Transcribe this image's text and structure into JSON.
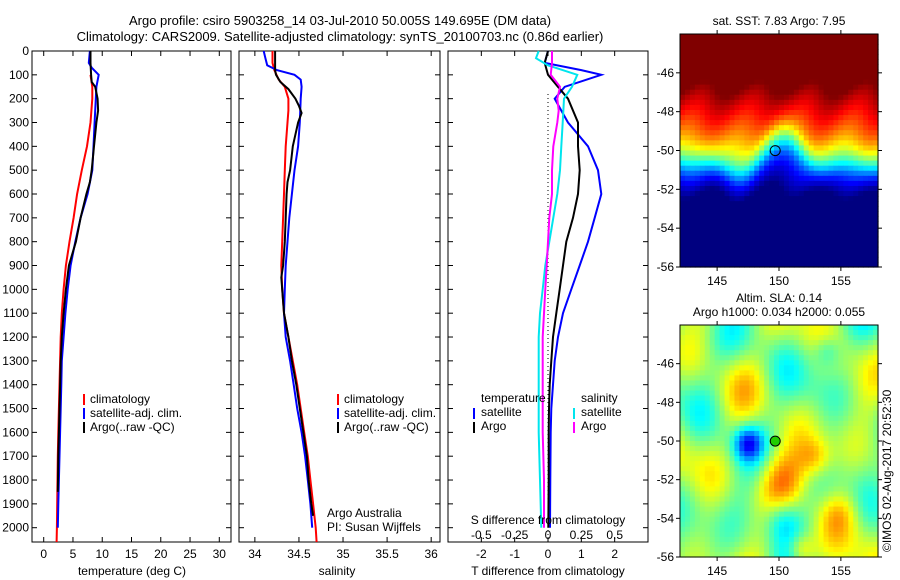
{
  "header": {
    "title_line1": "Argo profile: csiro 5903258_14 03-Jul-2010 50.005S 149.695E (DM data)",
    "title_line2": "Climatology: CARS2009. Satellite-adjusted climatology: synTS_20100703.nc (0.86d earlier)"
  },
  "colors": {
    "climatology": "#ff0000",
    "satellite": "#0000ff",
    "argo": "#000000",
    "sal_satellite": "#00e5ee",
    "sal_argo": "#ff00ff"
  },
  "chart_data": [
    {
      "type": "line",
      "id": "temperature-profile",
      "xlabel": "temperature (deg C)",
      "ylabel": "",
      "xlim": [
        -2,
        32
      ],
      "ylim": [
        2060,
        0
      ],
      "xticks": [
        0,
        5,
        10,
        15,
        20,
        25,
        30
      ],
      "yticks": [
        0,
        100,
        200,
        300,
        400,
        500,
        600,
        700,
        800,
        900,
        1000,
        1100,
        1200,
        1300,
        1400,
        1500,
        1600,
        1700,
        1800,
        1900,
        2000
      ],
      "legend": [
        "climatology",
        "satellite-adj. clim.",
        "Argo(..raw -QC)"
      ],
      "legend_position": "center",
      "series": [
        {
          "name": "climatology",
          "color": "#ff0000",
          "depth": [
            100,
            150,
            200,
            300,
            400,
            500,
            600,
            700,
            800,
            900,
            1000,
            1100,
            1200,
            1300,
            1400,
            1500,
            1600,
            1700,
            1800,
            1900,
            2000,
            2060
          ],
          "values": [
            8.0,
            8.3,
            8.3,
            8.0,
            7.4,
            6.5,
            5.7,
            5.1,
            4.4,
            3.8,
            3.4,
            3.1,
            2.9,
            2.8,
            2.7,
            2.6,
            2.5,
            2.4,
            2.35,
            2.3,
            2.25,
            2.2
          ]
        },
        {
          "name": "satellite-adj. clim.",
          "color": "#0000ff",
          "depth": [
            0,
            50,
            70,
            100,
            150,
            200,
            250,
            300,
            400,
            500,
            600,
            700,
            800,
            900,
            1000,
            1100,
            1200,
            1300,
            1400,
            1500,
            1600,
            1700,
            1800,
            1900,
            2000
          ],
          "values": [
            7.9,
            7.7,
            8.2,
            9.4,
            9.0,
            8.9,
            8.8,
            8.7,
            8.5,
            8.3,
            7.5,
            6.3,
            5.4,
            4.6,
            4.1,
            3.7,
            3.4,
            3.1,
            3.0,
            2.9,
            2.8,
            2.7,
            2.6,
            2.5,
            2.4
          ]
        },
        {
          "name": "Argo(..raw -QC)",
          "color": "#000000",
          "depth": [
            0,
            50,
            100,
            130,
            150,
            200,
            250,
            300,
            400,
            500,
            550,
            600,
            700,
            800,
            900,
            1000,
            1100,
            1200,
            1300,
            1400,
            1500,
            1600,
            1700,
            1800,
            1850
          ],
          "values": [
            8.0,
            8.0,
            8.1,
            8.2,
            8.8,
            9.2,
            9.3,
            9.0,
            8.6,
            8.2,
            7.9,
            7.3,
            6.3,
            5.5,
            4.3,
            3.8,
            3.4,
            3.1,
            2.9,
            2.8,
            2.7,
            2.6,
            2.5,
            2.45,
            2.4
          ]
        }
      ]
    },
    {
      "type": "line",
      "id": "salinity-profile",
      "xlabel": "salinity",
      "xlim": [
        33.82,
        36.1
      ],
      "ylim": [
        2060,
        0
      ],
      "xticks": [
        34,
        34.5,
        35,
        35.5,
        36
      ],
      "legend": [
        "climatology",
        "satellite-adj. clim.",
        "Argo(..raw -QC)"
      ],
      "legend_position": "center-right",
      "annotation": [
        "Argo Australia",
        "PI: Susan Wijffels"
      ],
      "series": [
        {
          "name": "climatology",
          "color": "#ff0000",
          "depth": [
            0,
            50,
            80,
            120,
            150,
            200,
            250,
            300,
            400,
            500,
            600,
            700,
            800,
            900,
            1000,
            1100,
            1200,
            1300,
            1400,
            1500,
            1600,
            1700,
            1800,
            1900,
            2000,
            2060
          ],
          "values": [
            34.2,
            34.2,
            34.22,
            34.27,
            34.34,
            34.38,
            34.38,
            34.37,
            34.35,
            34.34,
            34.33,
            34.32,
            34.31,
            34.3,
            34.31,
            34.33,
            34.38,
            34.43,
            34.48,
            34.52,
            34.56,
            34.6,
            34.63,
            34.66,
            34.69,
            34.7
          ]
        },
        {
          "name": "satellite-adj. clim.",
          "color": "#0000ff",
          "depth": [
            0,
            30,
            60,
            80,
            100,
            120,
            150,
            200,
            300,
            400,
            500,
            600,
            700,
            800,
            900,
            1000,
            1100,
            1200,
            1300,
            1400,
            1500,
            1600,
            1700,
            1800,
            1900,
            2000
          ],
          "values": [
            34.1,
            34.12,
            34.14,
            34.25,
            34.45,
            34.52,
            34.53,
            34.52,
            34.51,
            34.49,
            34.45,
            34.42,
            34.39,
            34.37,
            34.35,
            34.34,
            34.33,
            34.35,
            34.4,
            34.44,
            34.48,
            34.53,
            34.57,
            34.6,
            34.63,
            34.65
          ]
        },
        {
          "name": "Argo(..raw -QC)",
          "color": "#000000",
          "depth": [
            0,
            80,
            100,
            130,
            160,
            200,
            230,
            260,
            300,
            400,
            500,
            550,
            600,
            700,
            800,
            900,
            950,
            1000,
            1100,
            1200,
            1300,
            1400,
            1500,
            1600,
            1700,
            1800,
            1900,
            1950
          ],
          "values": [
            34.23,
            34.23,
            34.24,
            34.29,
            34.38,
            34.46,
            34.5,
            34.53,
            34.49,
            34.43,
            34.4,
            34.37,
            34.36,
            34.35,
            34.34,
            34.32,
            34.3,
            34.31,
            34.33,
            34.38,
            34.42,
            34.47,
            34.51,
            34.55,
            34.59,
            34.61,
            34.64,
            34.66
          ]
        }
      ]
    },
    {
      "type": "line",
      "id": "difference-profile",
      "xlabel": "T difference from climatology",
      "xlabel_top": "S difference from climatology",
      "xlim": [
        -3,
        3
      ],
      "ylim": [
        2060,
        0
      ],
      "xticks": [
        -2,
        -1,
        0,
        1,
        2
      ],
      "xticks_salinity": [
        -0.5,
        -0.25,
        0,
        0.25,
        0.5
      ],
      "legend": {
        "temperature_heading": "temperature",
        "salinity_heading": "salinity",
        "entries": [
          "satellite",
          "Argo",
          "satellite",
          "Argo"
        ]
      },
      "legend_position": "center",
      "series": [
        {
          "name": "temperature satellite",
          "color": "#0000ff",
          "depth": [
            0,
            50,
            80,
            100,
            150,
            200,
            300,
            400,
            500,
            600,
            700,
            800,
            900,
            1000,
            1100,
            1200,
            1300,
            1400,
            1500,
            1600,
            1800,
            2000
          ],
          "values": [
            0.0,
            -0.1,
            1.0,
            1.6,
            0.5,
            0.2,
            0.6,
            1.2,
            1.5,
            1.6,
            1.4,
            1.2,
            0.95,
            0.7,
            0.45,
            0.3,
            0.2,
            0.15,
            0.1,
            0.08,
            0.07,
            0.06
          ]
        },
        {
          "name": "temperature Argo",
          "color": "#000000",
          "depth": [
            0,
            50,
            100,
            150,
            200,
            300,
            400,
            500,
            600,
            700,
            800,
            900,
            1000,
            1100,
            1200,
            1300,
            1400,
            1500,
            1600,
            1800,
            2000
          ],
          "values": [
            0.0,
            -0.1,
            0.0,
            0.3,
            0.6,
            0.9,
            0.9,
            0.95,
            0.9,
            0.75,
            0.55,
            0.45,
            0.35,
            0.25,
            0.15,
            0.1,
            0.05,
            0.03,
            0.02,
            0.02,
            0.01
          ]
        },
        {
          "name": "salinity satellite",
          "color": "#00e5ee",
          "depth": [
            0,
            30,
            60,
            100,
            150,
            200,
            300,
            400,
            500,
            600,
            700,
            800,
            900,
            1000,
            1100,
            1200,
            1300,
            1400,
            1500,
            1600,
            1800,
            2000
          ],
          "values": [
            -0.07,
            -0.09,
            0.0,
            0.22,
            0.18,
            0.12,
            0.11,
            0.1,
            0.09,
            0.07,
            0.04,
            0.01,
            -0.02,
            -0.04,
            -0.06,
            -0.07,
            -0.07,
            -0.07,
            -0.07,
            -0.07,
            -0.06,
            -0.05
          ]
        },
        {
          "name": "salinity Argo",
          "color": "#ff00ff",
          "depth": [
            0,
            50,
            100,
            150,
            200,
            250,
            300,
            400,
            500,
            600,
            700,
            800,
            900,
            1000,
            1100,
            1200,
            1300,
            1400,
            1500,
            1600,
            1800,
            2000
          ],
          "values": [
            0.03,
            0.03,
            0.02,
            0.09,
            0.07,
            0.08,
            0.07,
            0.04,
            0.03,
            0.03,
            0.01,
            0.0,
            -0.01,
            -0.02,
            -0.03,
            -0.04,
            -0.04,
            -0.04,
            -0.04,
            -0.04,
            -0.03,
            -0.03
          ]
        }
      ]
    },
    {
      "type": "heatmap",
      "id": "sst-map",
      "title": "sat. SST: 7.83 Argo: 7.95",
      "xlim": [
        142,
        158
      ],
      "ylim": [
        -56,
        -44
      ],
      "xticks": [
        145,
        150,
        155
      ],
      "yticks": [
        -46,
        -48,
        -50,
        -52,
        -54,
        -56
      ],
      "marker": {
        "lon": 149.695,
        "lat": -50.005
      }
    },
    {
      "type": "heatmap",
      "id": "sla-map",
      "title_line1": "Altim. SLA: 0.14",
      "title_line2": "Argo h1000: 0.034 h2000: 0.055",
      "xlim": [
        142,
        158
      ],
      "ylim": [
        -56,
        -44
      ],
      "xticks": [
        145,
        150,
        155
      ],
      "yticks": [
        -46,
        -48,
        -50,
        -52,
        -54,
        -56
      ],
      "marker": {
        "lon": 149.695,
        "lat": -50.005
      }
    }
  ],
  "credit": "©IMOS 02-Aug-2017 20:52:30"
}
